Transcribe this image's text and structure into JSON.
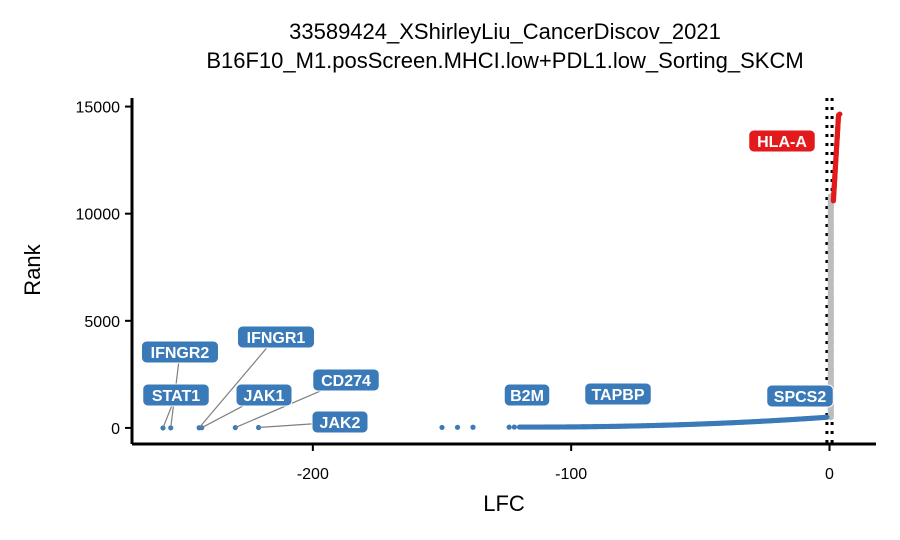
{
  "chart_data": {
    "type": "scatter",
    "title": "33589424_XShirleyLiu_CancerDiscov_2021",
    "subtitle": "B16F10_M1.posScreen.MHCI.low+PDL1.low_Sorting_SKCM",
    "xlabel": "LFC",
    "ylabel": "Rank",
    "xlim": [
      -270,
      18
    ],
    "ylim": [
      -750,
      15400
    ],
    "x_ticks": [
      -200,
      -100,
      0
    ],
    "x_tick_labels": [
      "-200",
      "-100",
      "0"
    ],
    "y_ticks": [
      0,
      5000,
      10000,
      15000
    ],
    "y_tick_labels": [
      "0",
      "5000",
      "10000",
      "15000"
    ],
    "threshold_lines_x": [
      -1,
      1
    ],
    "grid": false,
    "legend": "none",
    "colors": {
      "negative": "#3a7ab8",
      "neutral": "#bdbdbd",
      "positive": "#e31a1c",
      "threshold": "#000000",
      "axis": "#000000",
      "leader": "#7f7f7f"
    },
    "negative_points": [
      [
        -258,
        0
      ],
      [
        -255,
        4
      ],
      [
        -244,
        8
      ],
      [
        -243,
        12
      ],
      [
        -230,
        16
      ],
      [
        -221,
        20
      ],
      [
        -150,
        24
      ],
      [
        -144,
        28
      ],
      [
        -138,
        32
      ],
      [
        -124,
        36
      ],
      [
        -122,
        40
      ]
    ],
    "labels": [
      {
        "gene": "IFNGR2",
        "x": -255,
        "y": 4,
        "group": "negative"
      },
      {
        "gene": "STAT1",
        "x": -258,
        "y": 0,
        "group": "negative"
      },
      {
        "gene": "IFNGR1",
        "x": -244,
        "y": 8,
        "group": "negative"
      },
      {
        "gene": "JAK1",
        "x": -243,
        "y": 12,
        "group": "negative"
      },
      {
        "gene": "CD274",
        "x": -230,
        "y": 16,
        "group": "negative"
      },
      {
        "gene": "JAK2",
        "x": -221,
        "y": 20,
        "group": "negative"
      },
      {
        "gene": "B2M",
        "x": -124,
        "y": 36,
        "group": "negative"
      },
      {
        "gene": "TAPBP",
        "x": -100,
        "y": 60,
        "group": "negative"
      },
      {
        "gene": "SPCS2",
        "x": -1,
        "y": 500,
        "group": "negative"
      },
      {
        "gene": "HLA-A",
        "x": 3,
        "y": 14600,
        "group": "positive"
      }
    ]
  }
}
